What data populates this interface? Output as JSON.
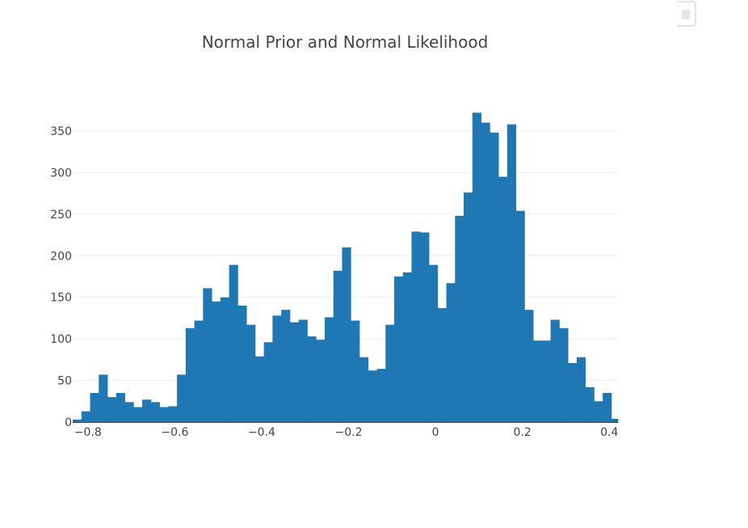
{
  "chart_data": {
    "type": "bar",
    "title": "Normal Prior and Normal Likelihood",
    "xlabel": "",
    "ylabel": "",
    "xlim": [
      -0.835,
      0.42
    ],
    "ylim": [
      0,
      385
    ],
    "bin_start": -0.835,
    "bin_width": 0.02,
    "x_ticks": [
      -0.8,
      -0.6,
      -0.4,
      -0.2,
      0,
      0.2,
      0.4
    ],
    "x_tick_labels": [
      "−0.8",
      "−0.6",
      "−0.4",
      "−0.2",
      "0",
      "0.2",
      "0.4"
    ],
    "y_ticks": [
      0,
      50,
      100,
      150,
      200,
      250,
      300,
      350
    ],
    "y_tick_labels": [
      "0",
      "50",
      "100",
      "150",
      "200",
      "250",
      "300",
      "350"
    ],
    "values": [
      3,
      13,
      35,
      57,
      30,
      35,
      24,
      18,
      27,
      24,
      18,
      19,
      57,
      113,
      122,
      161,
      145,
      150,
      189,
      140,
      117,
      79,
      96,
      128,
      135,
      120,
      123,
      103,
      99,
      126,
      182,
      210,
      122,
      78,
      62,
      64,
      117,
      175,
      180,
      229,
      228,
      189,
      137,
      167,
      248,
      276,
      372,
      360,
      348,
      295,
      358,
      254,
      135,
      98,
      98,
      123,
      113,
      71,
      78,
      42,
      25,
      35,
      4
    ],
    "bar_color": "#1f77b4",
    "grid": true,
    "legend": "none"
  },
  "modebar": {
    "icon": "plotly-logo-icon"
  }
}
